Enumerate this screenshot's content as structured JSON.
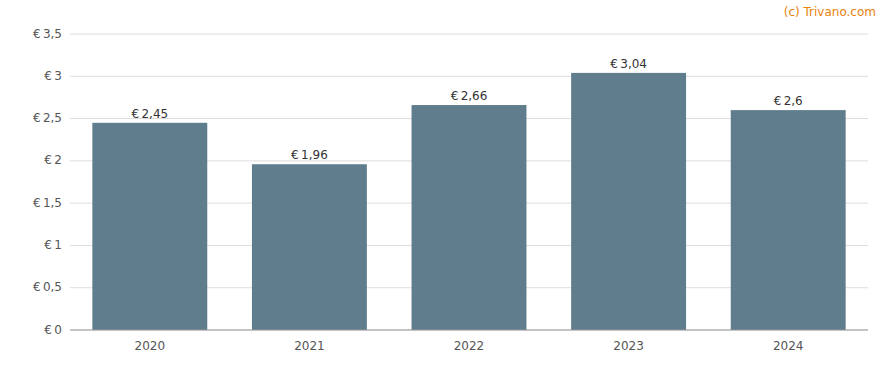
{
  "chart_data": {
    "type": "bar",
    "categories": [
      "2020",
      "2021",
      "2022",
      "2023",
      "2024"
    ],
    "values": [
      2.45,
      1.96,
      2.66,
      3.04,
      2.6
    ],
    "value_labels": [
      "€ 2,45",
      "€ 1,96",
      "€ 2,66",
      "€ 3,04",
      "€ 2,6"
    ],
    "color": "#5f7d8c",
    "ylim": [
      0,
      3.5
    ],
    "yticks": [
      {
        "value": 0,
        "label": "€ 0"
      },
      {
        "value": 0.5,
        "label": "€ 0,5"
      },
      {
        "value": 1.0,
        "label": "€ 1"
      },
      {
        "value": 1.5,
        "label": "€ 1,5"
      },
      {
        "value": 2.0,
        "label": "€ 2"
      },
      {
        "value": 2.5,
        "label": "€ 2,5"
      },
      {
        "value": 3.0,
        "label": "€ 3"
      },
      {
        "value": 3.5,
        "label": "€ 3,5"
      }
    ],
    "grid": true,
    "annotations": [
      {
        "text": "(c) Trivano.com",
        "color": "#e8820c"
      }
    ]
  }
}
